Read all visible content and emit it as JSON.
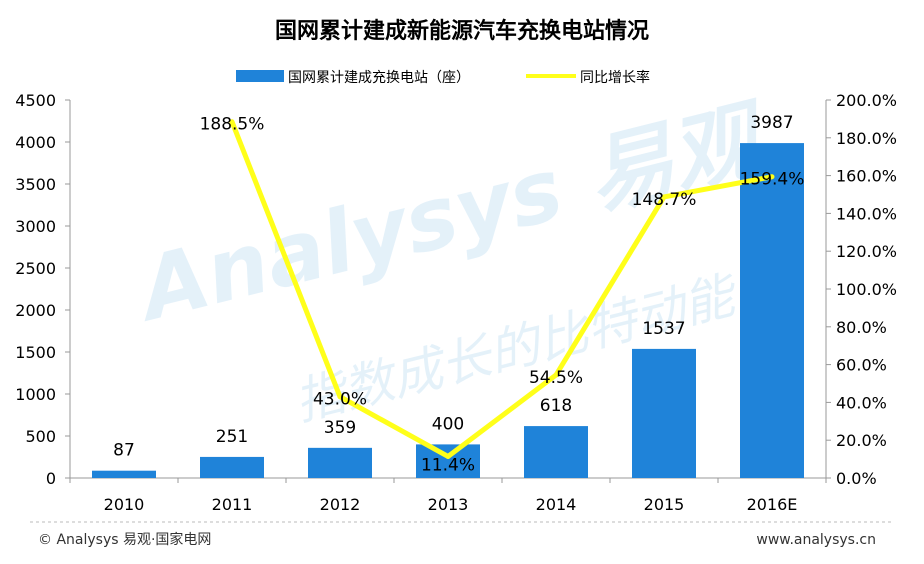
{
  "chart_data": {
    "type": "bar",
    "title": "国网累计建成新能源汽车充换电站情况",
    "categories": [
      "2010",
      "2011",
      "2012",
      "2013",
      "2014",
      "2015",
      "2016E"
    ],
    "series": [
      {
        "name": "国网累计建成充换电站（座）",
        "type": "bar",
        "axis": "left",
        "values": [
          87,
          251,
          359,
          400,
          618,
          1537,
          3987
        ],
        "labels": [
          "87",
          "251",
          "359",
          "400",
          "618",
          "1537",
          "3987"
        ]
      },
      {
        "name": "同比增长率",
        "type": "line",
        "axis": "right",
        "values": [
          null,
          188.5,
          43.0,
          11.4,
          54.5,
          148.7,
          159.4
        ],
        "labels": [
          "",
          "188.5%",
          "43.0%",
          "11.4%",
          "54.5%",
          "148.7%",
          "159.4%"
        ]
      }
    ],
    "ylim_left": [
      0,
      4500
    ],
    "yticks_left": [
      "0",
      "500",
      "1000",
      "1500",
      "2000",
      "2500",
      "3000",
      "3500",
      "4000",
      "4500"
    ],
    "ylim_right": [
      0,
      200
    ],
    "yticks_right": [
      "0.0%",
      "20.0%",
      "40.0%",
      "60.0%",
      "80.0%",
      "100.0%",
      "120.0%",
      "140.0%",
      "160.0%",
      "180.0%",
      "200.0%"
    ],
    "legend_position": "top-center",
    "grid": false,
    "colors": {
      "bar": "#1f83d9",
      "line": "#ffff1a",
      "axis": "#999999",
      "text": "#000000"
    }
  },
  "watermark": {
    "brand": "Analysys 易观",
    "slogan": "指数成长的比特动能"
  },
  "footer": {
    "left": "© Analysys 易观·国家电网",
    "right": "www.analysys.cn"
  }
}
